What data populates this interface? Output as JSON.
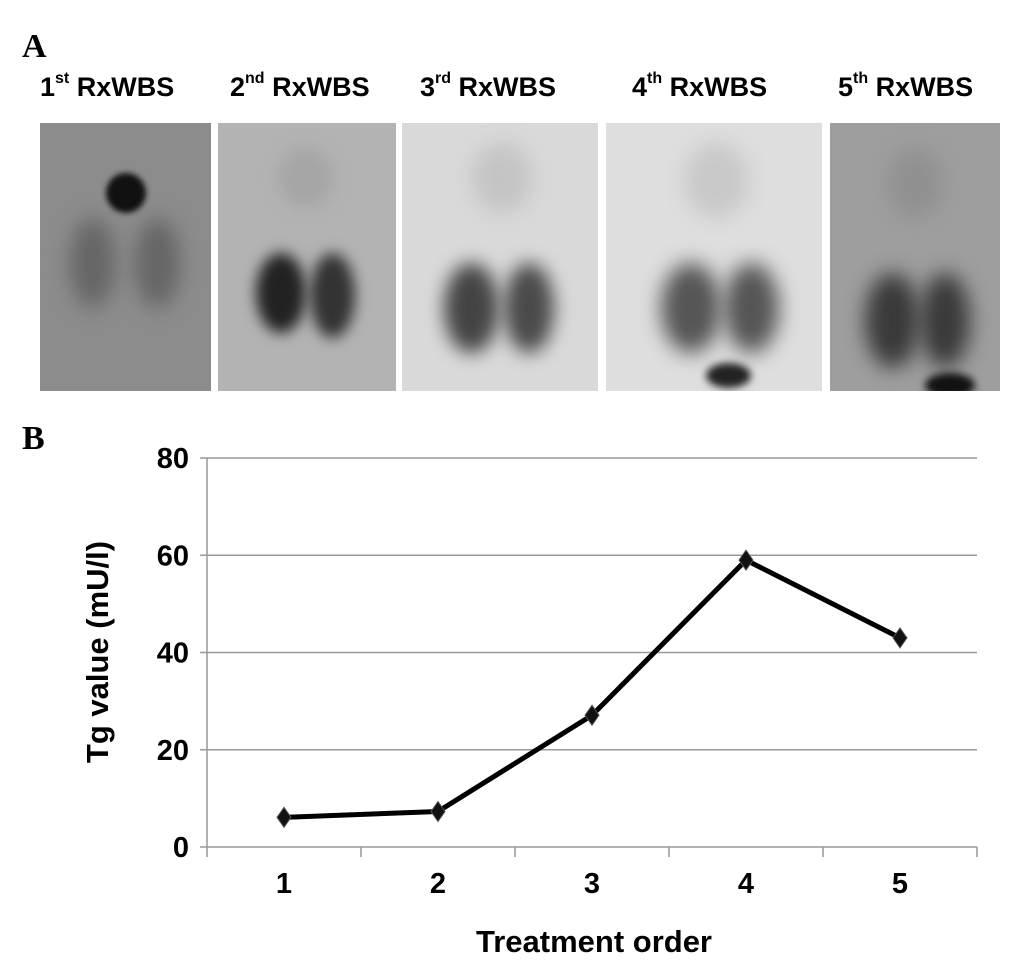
{
  "panel_a": {
    "letter": "A",
    "scans": [
      {
        "num": "1",
        "suffix": "st",
        "name": "RxWBS"
      },
      {
        "num": "2",
        "suffix": "nd",
        "name": "RxWBS"
      },
      {
        "num": "3",
        "suffix": "rd",
        "name": "RxWBS"
      },
      {
        "num": "4",
        "suffix": "th",
        "name": "RxWBS"
      },
      {
        "num": "5",
        "suffix": "th",
        "name": "RxWBS"
      }
    ]
  },
  "panel_b": {
    "letter": "B"
  },
  "chart_data": {
    "type": "line",
    "categories": [
      "1",
      "2",
      "3",
      "4",
      "5"
    ],
    "values": [
      6.1,
      7.3,
      27.1,
      59.0,
      43.0
    ],
    "xlabel": "Treatment order",
    "ylabel": "Tg value (mU/l)",
    "ylim": [
      0,
      80
    ],
    "yticks": [
      "0",
      "20",
      "40",
      "60",
      "80"
    ],
    "grid": "horizontal",
    "marker": "diamond",
    "line_color": "#000000"
  }
}
